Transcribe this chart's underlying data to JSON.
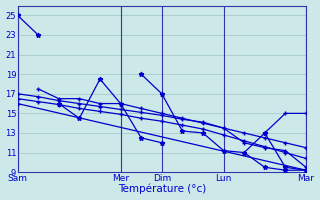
{
  "background_color": "#cce8e8",
  "grid_color": "#aad0d0",
  "line_color": "#0000cc",
  "spine_color": "#3333aa",
  "ylim": [
    9,
    26
  ],
  "yticks": [
    9,
    11,
    13,
    15,
    17,
    19,
    21,
    23,
    25
  ],
  "xlabel": "Température (°c)",
  "day_labels": [
    "Sam",
    "Mer",
    "Dim",
    "Lun",
    "Mar"
  ],
  "day_positions": [
    0,
    5,
    7,
    10,
    14
  ],
  "xlim": [
    0,
    14
  ],
  "line1_x": [
    0,
    1
  ],
  "line1_y": [
    25,
    23
  ],
  "line2_x": [
    2,
    3,
    4,
    5,
    6,
    7
  ],
  "line2_y": [
    16,
    14.5,
    18.5,
    16,
    12.5,
    12.0
  ],
  "line3_x": [
    1,
    2,
    3,
    4,
    5,
    6,
    7,
    8,
    9,
    10,
    11,
    12,
    13,
    14
  ],
  "line3_y": [
    17.5,
    16.5,
    16.5,
    16.0,
    16.0,
    15.5,
    15.0,
    14.5,
    14.0,
    13.5,
    12.0,
    11.5,
    11.2,
    9.5
  ],
  "line4_x": [
    0,
    1,
    2,
    3,
    4,
    5,
    6,
    7,
    8,
    9,
    10,
    11,
    12,
    13,
    14
  ],
  "line4_y": [
    17.0,
    16.7,
    16.3,
    16.0,
    15.7,
    15.4,
    15.1,
    14.8,
    14.4,
    14.1,
    13.5,
    13.0,
    12.5,
    12.0,
    11.5
  ],
  "line5_x": [
    0,
    1,
    2,
    3,
    4,
    5,
    6,
    7,
    8,
    9,
    10,
    11,
    12,
    13,
    14
  ],
  "line5_y": [
    16.5,
    16.2,
    15.9,
    15.5,
    15.2,
    14.9,
    14.5,
    14.2,
    13.8,
    13.4,
    12.8,
    12.2,
    11.6,
    11.0,
    10.4
  ],
  "line6_x": [
    0,
    14
  ],
  "line6_y": [
    16.0,
    9.2
  ],
  "line7_x": [
    6,
    7,
    8,
    9,
    10,
    11,
    12,
    13,
    14
  ],
  "line7_y": [
    19.0,
    17.0,
    13.2,
    13.0,
    11.2,
    11.0,
    9.5,
    9.2,
    9.2
  ],
  "line8_x": [
    11,
    12,
    13,
    14
  ],
  "line8_y": [
    11.0,
    13.0,
    15.0,
    15.0
  ],
  "line9_x": [
    12,
    13,
    14
  ],
  "line9_y": [
    13.0,
    9.5,
    9.2
  ]
}
